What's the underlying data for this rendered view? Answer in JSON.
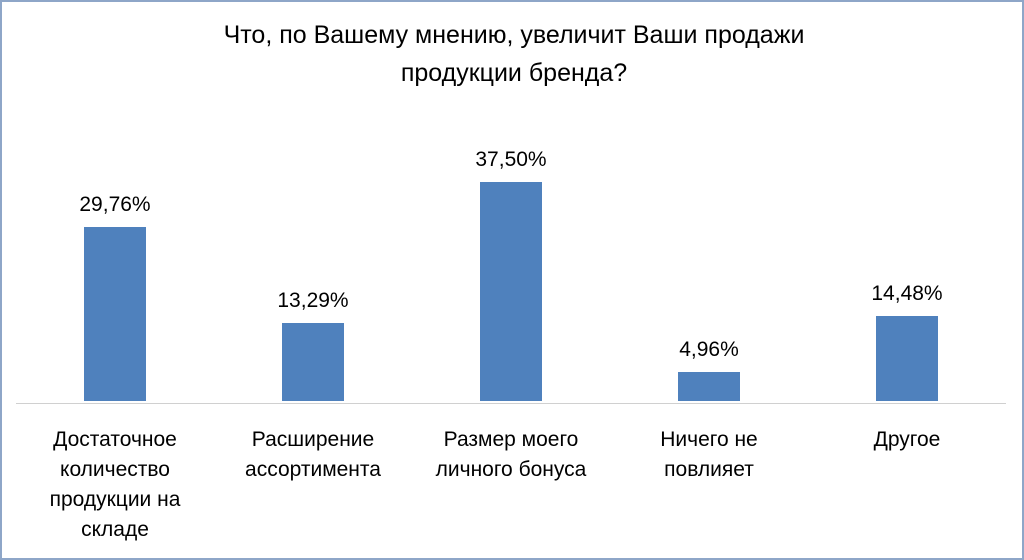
{
  "chart_data": {
    "type": "bar",
    "title": "Что, по Вашему мнению, увеличит Ваши продажи продукции бренда?",
    "categories": [
      "Достаточное количество продукции на складе",
      "Расширение ассортимента",
      "Размер моего личного бонуса",
      "Ничего не повлияет",
      "Другое"
    ],
    "values": [
      29.76,
      13.29,
      37.5,
      4.96,
      14.48
    ],
    "value_labels": [
      "29,76%",
      "13,29%",
      "37,50%",
      "4,96%",
      "14,48%"
    ],
    "color": "#4f81bd"
  }
}
